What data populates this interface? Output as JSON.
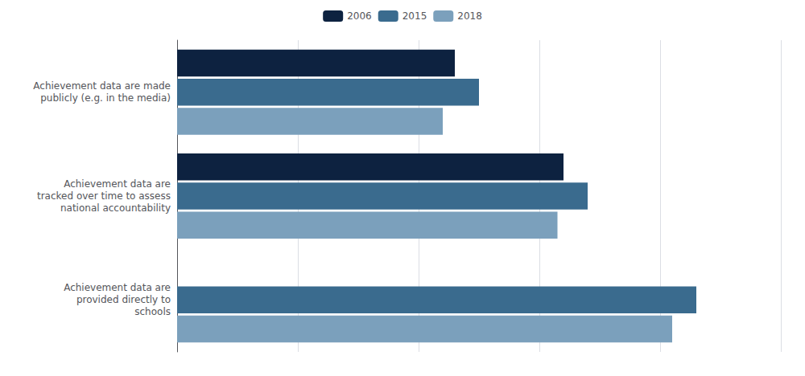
{
  "chart_data": {
    "type": "bar",
    "orientation": "horizontal",
    "categories": [
      "Achievement data are made\npublicly (e.g. in the media)",
      "Achievement data are\ntracked over time to assess\nnational accountability",
      "Achievement data are\nprovided directly to\nschools"
    ],
    "series": [
      {
        "name": "2006",
        "color": "#0d2240",
        "values": [
          46,
          64,
          null
        ]
      },
      {
        "name": "2015",
        "color": "#3a6b8e",
        "values": [
          50,
          68,
          86
        ]
      },
      {
        "name": "2018",
        "color": "#7ba0bc",
        "values": [
          44,
          63,
          82
        ]
      }
    ],
    "xlim": [
      0,
      100
    ],
    "xticks": [
      0,
      20,
      40,
      60,
      80,
      100
    ],
    "grid": true,
    "tick_labels": "y",
    "legend": "top"
  }
}
